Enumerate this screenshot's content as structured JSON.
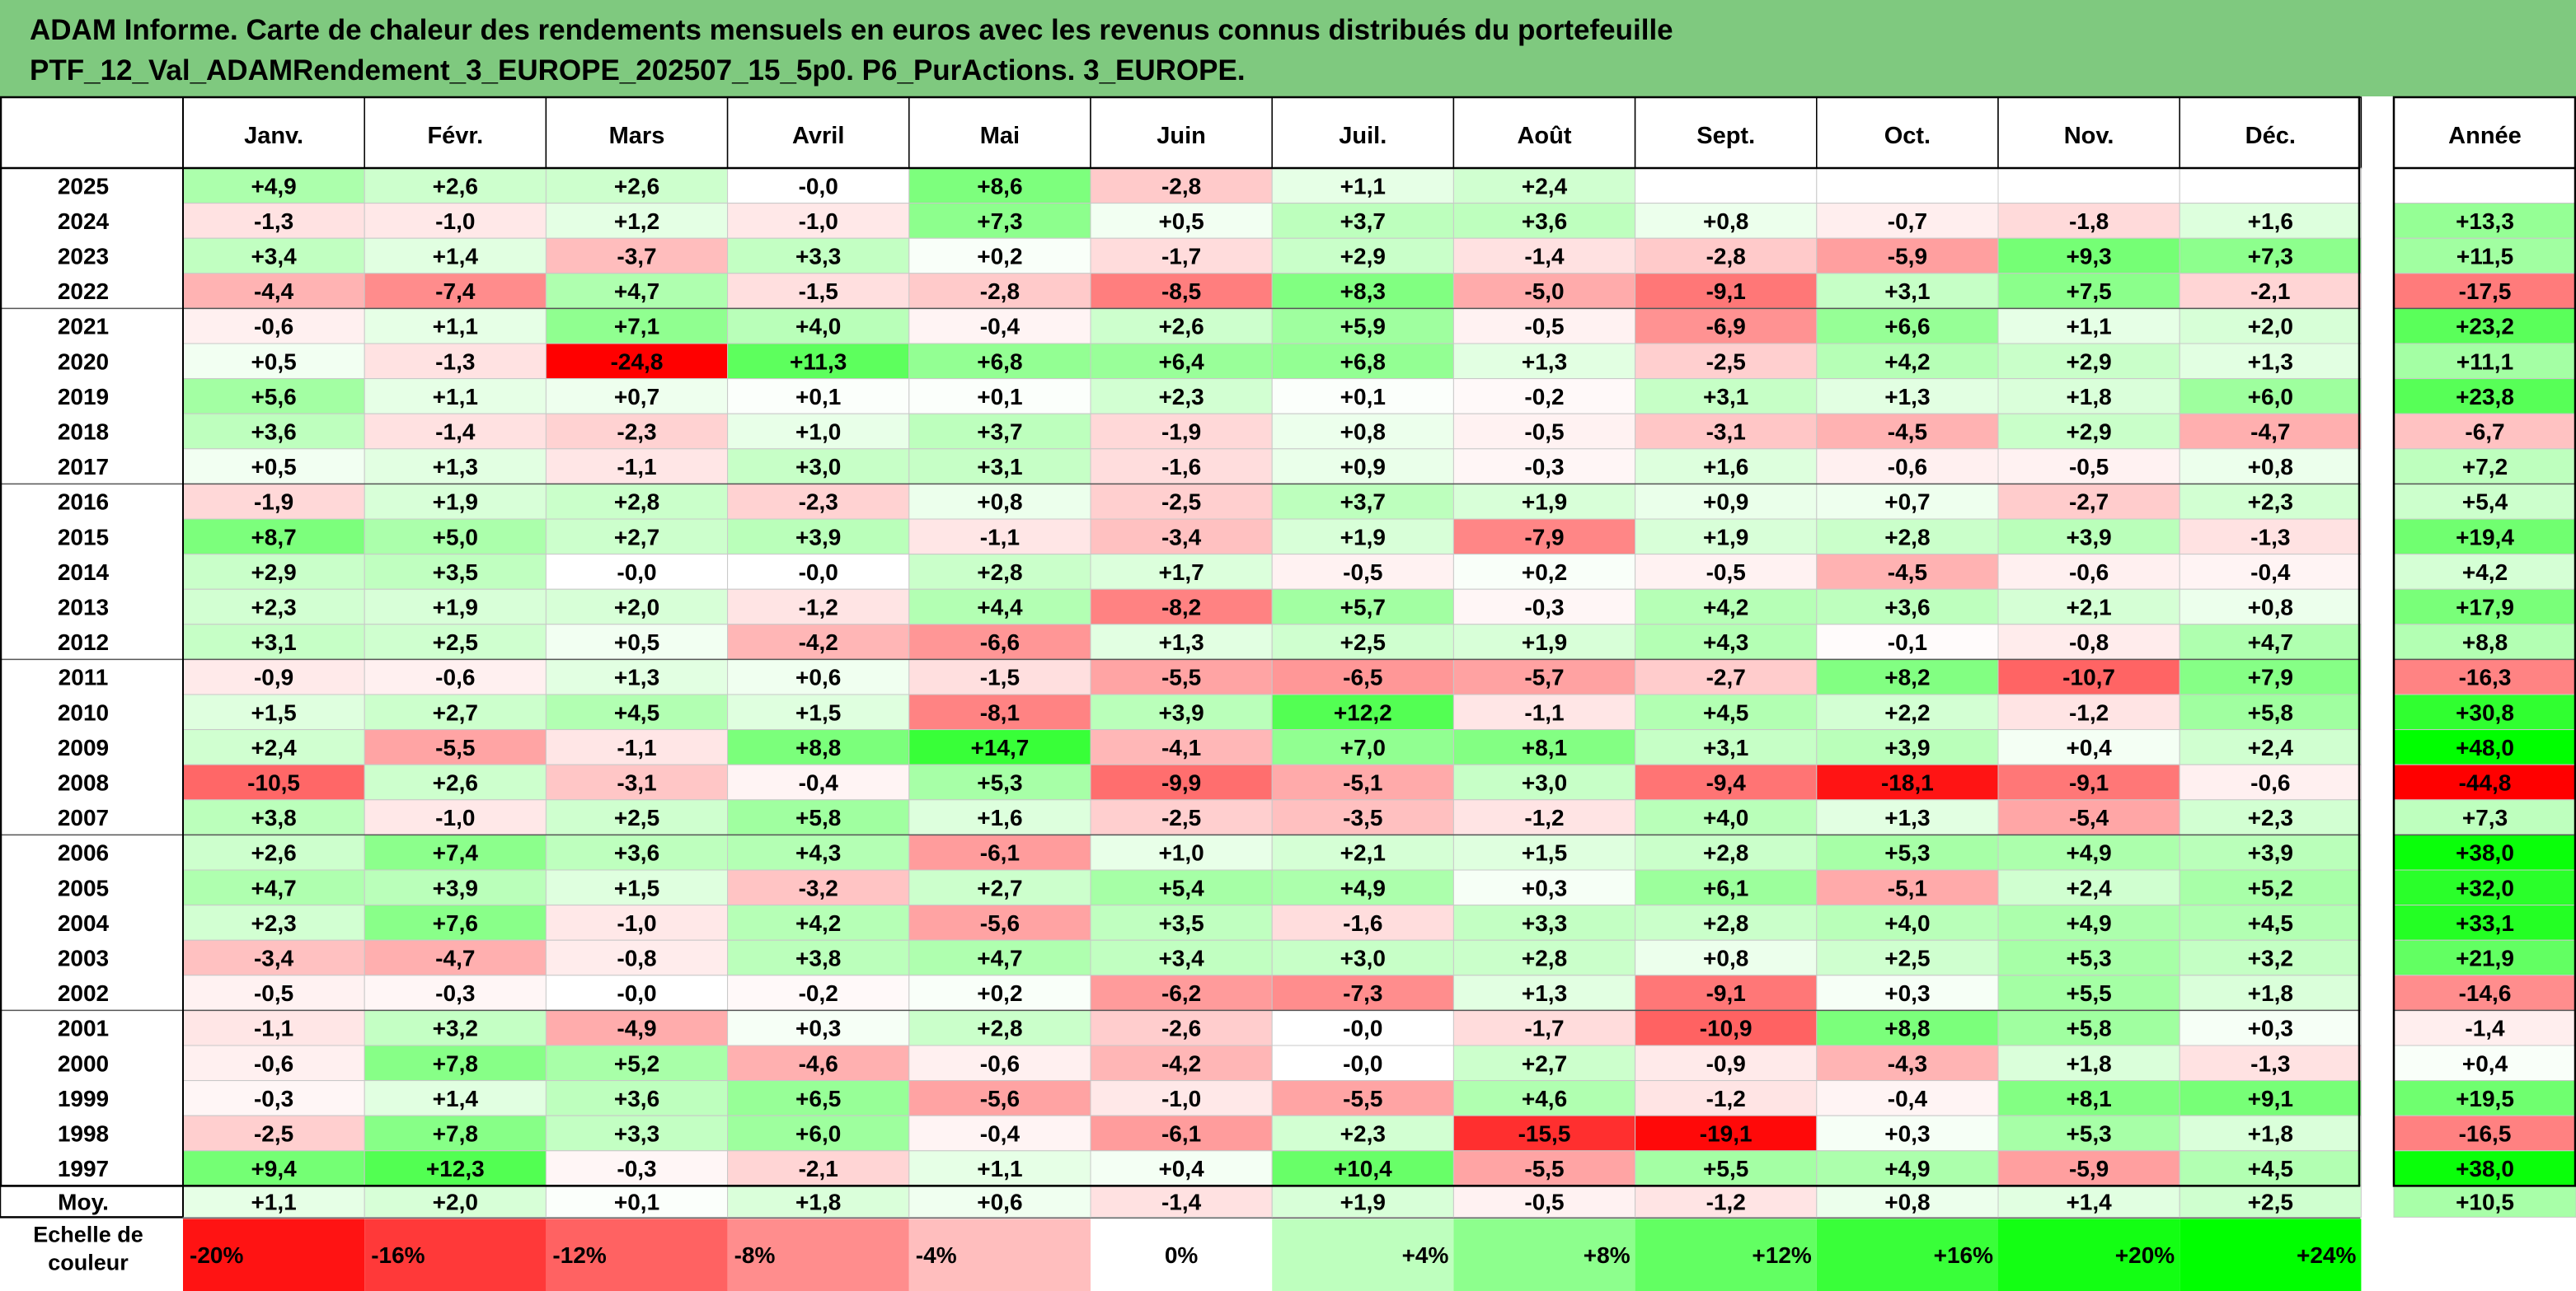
{
  "title": {
    "line1": "ADAM Informe. Carte de chaleur des rendements mensuels en euros avec les revenus connus distribués du portefeuille",
    "line2": "PTF_12_Val_ADAMRendement_3_EUROPE_202507_15_5p0. P6_PurActions. 3_EUROPE."
  },
  "colors": {
    "title_bg": "#7fc97f",
    "negative_max": "#ff0000",
    "neutral": "#ffffff",
    "positive_max": "#00ff00"
  },
  "chart_data": {
    "type": "heatmap",
    "months": [
      "Janv.",
      "Févr.",
      "Mars",
      "Avril",
      "Mai",
      "Juin",
      "Juil.",
      "Août",
      "Sept.",
      "Oct.",
      "Nov.",
      "Déc."
    ],
    "year_column_label": "Année",
    "rows": [
      {
        "year": "2025",
        "values": [
          "+4,9",
          "+2,6",
          "+2,6",
          "-0,0",
          "+8,6",
          "-2,8",
          "+1,1",
          "+2,4",
          "",
          "",
          "",
          ""
        ],
        "annual": ""
      },
      {
        "year": "2024",
        "values": [
          "-1,3",
          "-1,0",
          "+1,2",
          "-1,0",
          "+7,3",
          "+0,5",
          "+3,7",
          "+3,6",
          "+0,8",
          "-0,7",
          "-1,8",
          "+1,6"
        ],
        "annual": "+13,3"
      },
      {
        "year": "2023",
        "values": [
          "+3,4",
          "+1,4",
          "-3,7",
          "+3,3",
          "+0,2",
          "-1,7",
          "+2,9",
          "-1,4",
          "-2,8",
          "-5,9",
          "+9,3",
          "+7,3"
        ],
        "annual": "+11,5"
      },
      {
        "year": "2022",
        "values": [
          "-4,4",
          "-7,4",
          "+4,7",
          "-1,5",
          "-2,8",
          "-8,5",
          "+8,3",
          "-5,0",
          "-9,1",
          "+3,1",
          "+7,5",
          "-2,1"
        ],
        "annual": "-17,5"
      },
      {
        "year": "2021",
        "values": [
          "-0,6",
          "+1,1",
          "+7,1",
          "+4,0",
          "-0,4",
          "+2,6",
          "+5,9",
          "-0,5",
          "-6,9",
          "+6,6",
          "+1,1",
          "+2,0"
        ],
        "annual": "+23,2"
      },
      {
        "year": "2020",
        "values": [
          "+0,5",
          "-1,3",
          "-24,8",
          "+11,3",
          "+6,8",
          "+6,4",
          "+6,8",
          "+1,3",
          "-2,5",
          "+4,2",
          "+2,9",
          "+1,3"
        ],
        "annual": "+11,1"
      },
      {
        "year": "2019",
        "values": [
          "+5,6",
          "+1,1",
          "+0,7",
          "+0,1",
          "+0,1",
          "+2,3",
          "+0,1",
          "-0,2",
          "+3,1",
          "+1,3",
          "+1,8",
          "+6,0"
        ],
        "annual": "+23,8"
      },
      {
        "year": "2018",
        "values": [
          "+3,6",
          "-1,4",
          "-2,3",
          "+1,0",
          "+3,7",
          "-1,9",
          "+0,8",
          "-0,5",
          "-3,1",
          "-4,5",
          "+2,9",
          "-4,7"
        ],
        "annual": "-6,7"
      },
      {
        "year": "2017",
        "values": [
          "+0,5",
          "+1,3",
          "-1,1",
          "+3,0",
          "+3,1",
          "-1,6",
          "+0,9",
          "-0,3",
          "+1,6",
          "-0,6",
          "-0,5",
          "+0,8"
        ],
        "annual": "+7,2"
      },
      {
        "year": "2016",
        "values": [
          "-1,9",
          "+1,9",
          "+2,8",
          "-2,3",
          "+0,8",
          "-2,5",
          "+3,7",
          "+1,9",
          "+0,9",
          "+0,7",
          "-2,7",
          "+2,3"
        ],
        "annual": "+5,4"
      },
      {
        "year": "2015",
        "values": [
          "+8,7",
          "+5,0",
          "+2,7",
          "+3,9",
          "-1,1",
          "-3,4",
          "+1,9",
          "-7,9",
          "+1,9",
          "+2,8",
          "+3,9",
          "-1,3"
        ],
        "annual": "+19,4"
      },
      {
        "year": "2014",
        "values": [
          "+2,9",
          "+3,5",
          "-0,0",
          "-0,0",
          "+2,8",
          "+1,7",
          "-0,5",
          "+0,2",
          "-0,5",
          "-4,5",
          "-0,6",
          "-0,4"
        ],
        "annual": "+4,2"
      },
      {
        "year": "2013",
        "values": [
          "+2,3",
          "+1,9",
          "+2,0",
          "-1,2",
          "+4,4",
          "-8,2",
          "+5,7",
          "-0,3",
          "+4,2",
          "+3,6",
          "+2,1",
          "+0,8"
        ],
        "annual": "+17,9"
      },
      {
        "year": "2012",
        "values": [
          "+3,1",
          "+2,5",
          "+0,5",
          "-4,2",
          "-6,6",
          "+1,3",
          "+2,5",
          "+1,9",
          "+4,3",
          "-0,1",
          "-0,8",
          "+4,7"
        ],
        "annual": "+8,8"
      },
      {
        "year": "2011",
        "values": [
          "-0,9",
          "-0,6",
          "+1,3",
          "+0,6",
          "-1,5",
          "-5,5",
          "-6,5",
          "-5,7",
          "-2,7",
          "+8,2",
          "-10,7",
          "+7,9"
        ],
        "annual": "-16,3"
      },
      {
        "year": "2010",
        "values": [
          "+1,5",
          "+2,7",
          "+4,5",
          "+1,5",
          "-8,1",
          "+3,9",
          "+12,2",
          "-1,1",
          "+4,5",
          "+2,2",
          "-1,2",
          "+5,8"
        ],
        "annual": "+30,8"
      },
      {
        "year": "2009",
        "values": [
          "+2,4",
          "-5,5",
          "-1,1",
          "+8,8",
          "+14,7",
          "-4,1",
          "+7,0",
          "+8,1",
          "+3,1",
          "+3,9",
          "+0,4",
          "+2,4"
        ],
        "annual": "+48,0"
      },
      {
        "year": "2008",
        "values": [
          "-10,5",
          "+2,6",
          "-3,1",
          "-0,4",
          "+5,3",
          "-9,9",
          "-5,1",
          "+3,0",
          "-9,4",
          "-18,1",
          "-9,1",
          "-0,6"
        ],
        "annual": "-44,8"
      },
      {
        "year": "2007",
        "values": [
          "+3,8",
          "-1,0",
          "+2,5",
          "+5,8",
          "+1,6",
          "-2,5",
          "-3,5",
          "-1,2",
          "+4,0",
          "+1,3",
          "-5,4",
          "+2,3"
        ],
        "annual": "+7,3"
      },
      {
        "year": "2006",
        "values": [
          "+2,6",
          "+7,4",
          "+3,6",
          "+4,3",
          "-6,1",
          "+1,0",
          "+2,1",
          "+1,5",
          "+2,8",
          "+5,3",
          "+4,9",
          "+3,9"
        ],
        "annual": "+38,0"
      },
      {
        "year": "2005",
        "values": [
          "+4,7",
          "+3,9",
          "+1,5",
          "-3,2",
          "+2,7",
          "+5,4",
          "+4,9",
          "+0,3",
          "+6,1",
          "-5,1",
          "+2,4",
          "+5,2"
        ],
        "annual": "+32,0"
      },
      {
        "year": "2004",
        "values": [
          "+2,3",
          "+7,6",
          "-1,0",
          "+4,2",
          "-5,6",
          "+3,5",
          "-1,6",
          "+3,3",
          "+2,8",
          "+4,0",
          "+4,9",
          "+4,5"
        ],
        "annual": "+33,1"
      },
      {
        "year": "2003",
        "values": [
          "-3,4",
          "-4,7",
          "-0,8",
          "+3,8",
          "+4,7",
          "+3,4",
          "+3,0",
          "+2,8",
          "+0,8",
          "+2,5",
          "+5,3",
          "+3,2"
        ],
        "annual": "+21,9"
      },
      {
        "year": "2002",
        "values": [
          "-0,5",
          "-0,3",
          "-0,0",
          "-0,2",
          "+0,2",
          "-6,2",
          "-7,3",
          "+1,3",
          "-9,1",
          "+0,3",
          "+5,5",
          "+1,8"
        ],
        "annual": "-14,6"
      },
      {
        "year": "2001",
        "values": [
          "-1,1",
          "+3,2",
          "-4,9",
          "+0,3",
          "+2,8",
          "-2,6",
          "-0,0",
          "-1,7",
          "-10,9",
          "+8,8",
          "+5,8",
          "+0,3"
        ],
        "annual": "-1,4"
      },
      {
        "year": "2000",
        "values": [
          "-0,6",
          "+7,8",
          "+5,2",
          "-4,6",
          "-0,6",
          "-4,2",
          "-0,0",
          "+2,7",
          "-0,9",
          "-4,3",
          "+1,8",
          "-1,3"
        ],
        "annual": "+0,4"
      },
      {
        "year": "1999",
        "values": [
          "-0,3",
          "+1,4",
          "+3,6",
          "+6,5",
          "-5,6",
          "-1,0",
          "-5,5",
          "+4,6",
          "-1,2",
          "-0,4",
          "+8,1",
          "+9,1"
        ],
        "annual": "+19,5"
      },
      {
        "year": "1998",
        "values": [
          "-2,5",
          "+7,8",
          "+3,3",
          "+6,0",
          "-0,4",
          "-6,1",
          "+2,3",
          "-15,5",
          "-19,1",
          "+0,3",
          "+5,3",
          "+1,8"
        ],
        "annual": "-16,5"
      },
      {
        "year": "1997",
        "values": [
          "+9,4",
          "+12,3",
          "-0,3",
          "-2,1",
          "+1,1",
          "+0,4",
          "+10,4",
          "-5,5",
          "+5,5",
          "+4,9",
          "-5,9",
          "+4,5"
        ],
        "annual": "+38,0"
      }
    ],
    "average": {
      "label": "Moy.",
      "values": [
        "+1,1",
        "+2,0",
        "+0,1",
        "+1,8",
        "+0,6",
        "-1,4",
        "+1,9",
        "-0,5",
        "-1,2",
        "+0,8",
        "+1,4",
        "+2,5"
      ],
      "annual": "+10,5"
    },
    "scale": {
      "label_line1": "Echelle de",
      "label_line2": "couleur",
      "steps": [
        "-20%",
        "-16%",
        "-12%",
        "-8%",
        "-4%",
        "0%",
        "+4%",
        "+8%",
        "+12%",
        "+16%",
        "+20%",
        "+24%"
      ]
    }
  }
}
